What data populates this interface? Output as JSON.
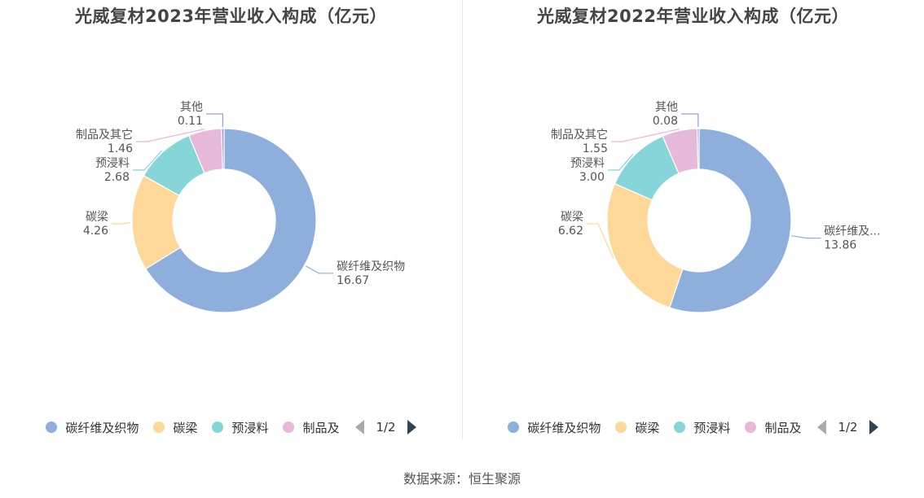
{
  "colors": [
    "#8eaedb",
    "#fed898",
    "#86d5d8",
    "#e6b8da",
    "#9d97e6"
  ],
  "legend_more_icon": "chevron-right-icon",
  "legend_prev_icon": "chevron-left-icon",
  "source": "数据来源：恒生聚源",
  "chart_data": [
    {
      "type": "pie",
      "donut": true,
      "title": "光威复材2023年营业收入构成（亿元）",
      "categories": [
        "碳纤维及织物",
        "碳梁",
        "预浸料",
        "制品及其它",
        "其他"
      ],
      "values": [
        16.67,
        4.26,
        2.68,
        1.46,
        0.11
      ],
      "labels": [
        "碳纤维及织物",
        "碳梁",
        "预浸料",
        "制品及其它",
        "其他"
      ],
      "value_labels": [
        "16.67",
        "4.26",
        "2.68",
        "1.46",
        "0.11"
      ],
      "legend": {
        "items": [
          "碳纤维及织物",
          "碳梁",
          "预浸料",
          "制品及"
        ],
        "page": "1/2",
        "position": "bottom"
      }
    },
    {
      "type": "pie",
      "donut": true,
      "title": "光威复材2022年营业收入构成（亿元）",
      "categories": [
        "碳纤维及织物",
        "碳梁",
        "预浸料",
        "制品及其它",
        "其他"
      ],
      "values": [
        13.86,
        6.62,
        3.0,
        1.55,
        0.08
      ],
      "labels": [
        "碳纤维及...",
        "碳梁",
        "预浸料",
        "制品及其它",
        "其他"
      ],
      "value_labels": [
        "13.86",
        "6.62",
        "3.00",
        "1.55",
        "0.08"
      ],
      "legend": {
        "items": [
          "碳纤维及织物",
          "碳梁",
          "预浸料",
          "制品及"
        ],
        "page": "1/2",
        "position": "bottom"
      }
    }
  ]
}
